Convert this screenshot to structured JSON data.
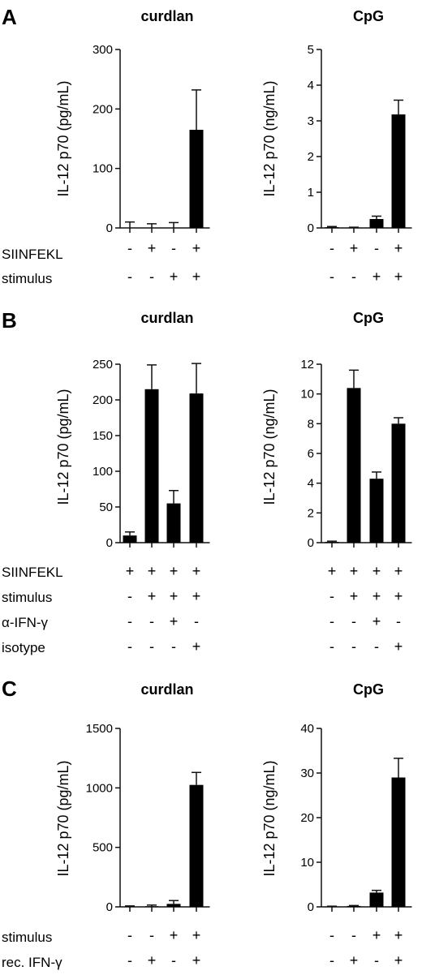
{
  "figure": {
    "panels": [
      {
        "letter": "A",
        "conditions": [
          {
            "label": "SIINFEKL",
            "values": [
              "-",
              "+",
              "-",
              "+"
            ]
          },
          {
            "label": "stimulus",
            "values": [
              "-",
              "-",
              "+",
              "+"
            ]
          }
        ],
        "charts": [
          {
            "title": "curdlan",
            "ylabel": "IL-12 p70 (pg/mL)",
            "yticks": [
              0,
              100,
              200,
              300
            ],
            "ylim": [
              0,
              300
            ],
            "values": [
              0,
              0,
              0,
              165
            ],
            "errors": [
              10,
              7,
              9,
              67
            ]
          },
          {
            "title": "CpG",
            "ylabel": "IL-12 p70 (ng/mL)",
            "yticks": [
              0,
              1,
              2,
              3,
              4,
              5
            ],
            "ylim": [
              0,
              5
            ],
            "values": [
              0.02,
              0.01,
              0.25,
              3.18
            ],
            "errors": [
              0.02,
              0.01,
              0.08,
              0.4
            ]
          }
        ]
      },
      {
        "letter": "B",
        "conditions": [
          {
            "label": "SIINFEKL",
            "values": [
              "+",
              "+",
              "+",
              "+"
            ]
          },
          {
            "label": "stimulus",
            "values": [
              "-",
              "+",
              "+",
              "+"
            ]
          },
          {
            "label": "α-IFN-γ",
            "values": [
              "-",
              "-",
              "+",
              "-"
            ]
          },
          {
            "label": "isotype",
            "values": [
              "-",
              "-",
              "-",
              "+"
            ]
          }
        ],
        "charts": [
          {
            "title": "curdlan",
            "ylabel": "IL-12 p70 (pg/mL)",
            "yticks": [
              0,
              50,
              100,
              150,
              200,
              250
            ],
            "ylim": [
              0,
              250
            ],
            "values": [
              10,
              215,
              55,
              209
            ],
            "errors": [
              5,
              34,
              18,
              42
            ]
          },
          {
            "title": "CpG",
            "ylabel": "IL-12 p70 (ng/mL)",
            "yticks": [
              0,
              2,
              4,
              6,
              8,
              10,
              12
            ],
            "ylim": [
              0,
              12
            ],
            "values": [
              0.05,
              10.4,
              4.3,
              8.0
            ],
            "errors": [
              0.05,
              1.2,
              0.45,
              0.4
            ]
          }
        ]
      },
      {
        "letter": "C",
        "conditions": [
          {
            "label": "stimulus",
            "values": [
              "-",
              "-",
              "+",
              "+"
            ]
          },
          {
            "label": "rec. IFN-γ",
            "values": [
              "-",
              "+",
              "-",
              "+"
            ]
          }
        ],
        "charts": [
          {
            "title": "curdlan",
            "ylabel": "IL-12 p70 (pg/mL)",
            "yticks": [
              0,
              500,
              1000,
              1500
            ],
            "ylim": [
              0,
              1500
            ],
            "values": [
              0,
              5,
              25,
              1025
            ],
            "errors": [
              8,
              10,
              28,
              105
            ]
          },
          {
            "title": "CpG",
            "ylabel": "IL-12 p70 (ng/mL)",
            "yticks": [
              0,
              10,
              20,
              30,
              40
            ],
            "ylim": [
              0,
              40
            ],
            "values": [
              0.1,
              0.2,
              3.2,
              29
            ],
            "errors": [
              0.05,
              0.1,
              0.5,
              4.3
            ]
          }
        ]
      }
    ]
  },
  "chart_data": [
    {
      "type": "bar",
      "panel": "A",
      "title": "curdlan",
      "ylabel": "IL-12 p70 (pg/mL)",
      "ylim": [
        0,
        300
      ],
      "categories": [
        "SIINFEKL- stimulus-",
        "SIINFEKL+ stimulus-",
        "SIINFEKL- stimulus+",
        "SIINFEKL+ stimulus+"
      ],
      "values": [
        0,
        0,
        0,
        165
      ],
      "error": [
        10,
        7,
        9,
        67
      ]
    },
    {
      "type": "bar",
      "panel": "A",
      "title": "CpG",
      "ylabel": "IL-12 p70 (ng/mL)",
      "ylim": [
        0,
        5
      ],
      "categories": [
        "SIINFEKL- stimulus-",
        "SIINFEKL+ stimulus-",
        "SIINFEKL- stimulus+",
        "SIINFEKL+ stimulus+"
      ],
      "values": [
        0.02,
        0.01,
        0.25,
        3.18
      ],
      "error": [
        0.02,
        0.01,
        0.08,
        0.4
      ]
    },
    {
      "type": "bar",
      "panel": "B",
      "title": "curdlan",
      "ylabel": "IL-12 p70 (pg/mL)",
      "ylim": [
        0,
        250
      ],
      "values": [
        10,
        215,
        55,
        209
      ],
      "error": [
        5,
        34,
        18,
        42
      ]
    },
    {
      "type": "bar",
      "panel": "B",
      "title": "CpG",
      "ylabel": "IL-12 p70 (ng/mL)",
      "ylim": [
        0,
        12
      ],
      "values": [
        0.05,
        10.4,
        4.3,
        8.0
      ],
      "error": [
        0.05,
        1.2,
        0.45,
        0.4
      ]
    },
    {
      "type": "bar",
      "panel": "C",
      "title": "curdlan",
      "ylabel": "IL-12 p70 (pg/mL)",
      "ylim": [
        0,
        1500
      ],
      "values": [
        0,
        5,
        25,
        1025
      ],
      "error": [
        8,
        10,
        28,
        105
      ]
    },
    {
      "type": "bar",
      "panel": "C",
      "title": "CpG",
      "ylabel": "IL-12 p70 (ng/mL)",
      "ylim": [
        0,
        40
      ],
      "values": [
        0.1,
        0.2,
        3.2,
        29
      ],
      "error": [
        0.05,
        0.1,
        0.5,
        4.3
      ]
    }
  ]
}
